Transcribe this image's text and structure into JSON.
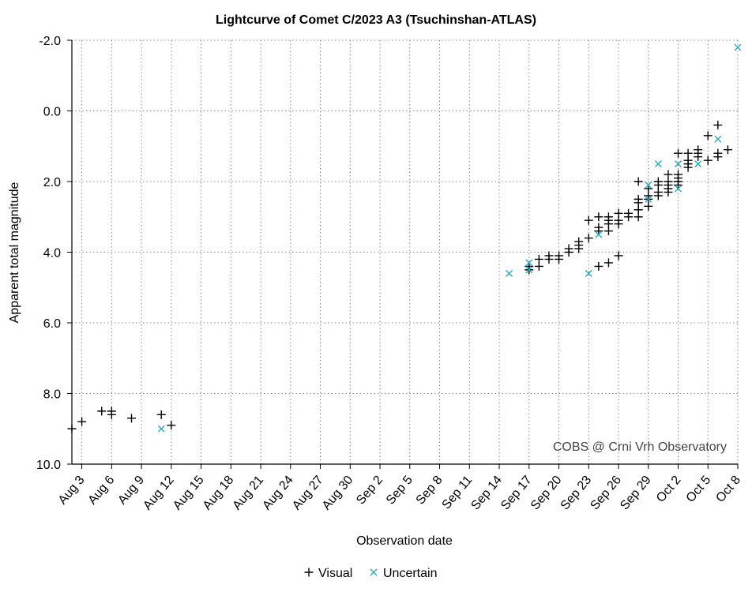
{
  "chart_data": {
    "type": "scatter",
    "title": "Lightcurve of Comet C/2023 A3 (Tsuchinshan-ATLAS)",
    "xlabel": "Observation date",
    "ylabel": "Apparent total magnitude",
    "x_type": "date",
    "year": 2024,
    "xlim": [
      "2024-08-02",
      "2024-10-08"
    ],
    "ylim": [
      10.0,
      -2.0
    ],
    "y_inverted": true,
    "x_ticks": [
      "Aug 3",
      "Aug 6",
      "Aug 9",
      "Aug 12",
      "Aug 15",
      "Aug 18",
      "Aug 21",
      "Aug 24",
      "Aug 27",
      "Aug 30",
      "Sep 2",
      "Sep 5",
      "Sep 8",
      "Sep 11",
      "Sep 14",
      "Sep 17",
      "Sep 20",
      "Sep 23",
      "Sep 26",
      "Sep 29",
      "Oct 2",
      "Oct 5",
      "Oct 8"
    ],
    "y_ticks": [
      "-2.0",
      "0.0",
      "2.0",
      "4.0",
      "6.0",
      "8.0",
      "10.0"
    ],
    "grid": true,
    "legend": "bottom-center",
    "annotation": "COBS @ Crni Vrh Observatory",
    "series": [
      {
        "name": "Visual",
        "marker": "+",
        "color": "#000000",
        "points": [
          [
            "2024-08-02",
            9.0
          ],
          [
            "2024-08-03",
            8.8
          ],
          [
            "2024-08-05",
            8.5
          ],
          [
            "2024-08-06",
            8.6
          ],
          [
            "2024-08-06",
            8.5
          ],
          [
            "2024-08-08",
            8.7
          ],
          [
            "2024-08-11",
            8.6
          ],
          [
            "2024-08-12",
            8.9
          ],
          [
            "2024-09-17",
            4.5
          ],
          [
            "2024-09-17",
            4.4
          ],
          [
            "2024-09-18",
            4.2
          ],
          [
            "2024-09-18",
            4.4
          ],
          [
            "2024-09-19",
            4.2
          ],
          [
            "2024-09-19",
            4.1
          ],
          [
            "2024-09-20",
            4.2
          ],
          [
            "2024-09-20",
            4.1
          ],
          [
            "2024-09-21",
            4.0
          ],
          [
            "2024-09-21",
            3.9
          ],
          [
            "2024-09-22",
            3.9
          ],
          [
            "2024-09-22",
            3.8
          ],
          [
            "2024-09-22",
            3.7
          ],
          [
            "2024-09-23",
            3.6
          ],
          [
            "2024-09-23",
            3.1
          ],
          [
            "2024-09-24",
            3.3
          ],
          [
            "2024-09-24",
            3.4
          ],
          [
            "2024-09-24",
            3.0
          ],
          [
            "2024-09-24",
            4.4
          ],
          [
            "2024-09-25",
            3.2
          ],
          [
            "2024-09-25",
            3.1
          ],
          [
            "2024-09-25",
            3.0
          ],
          [
            "2024-09-25",
            3.4
          ],
          [
            "2024-09-25",
            4.3
          ],
          [
            "2024-09-26",
            3.1
          ],
          [
            "2024-09-26",
            2.9
          ],
          [
            "2024-09-26",
            3.2
          ],
          [
            "2024-09-26",
            4.1
          ],
          [
            "2024-09-27",
            3.0
          ],
          [
            "2024-09-27",
            2.9
          ],
          [
            "2024-09-28",
            2.8
          ],
          [
            "2024-09-28",
            2.0
          ],
          [
            "2024-09-28",
            2.5
          ],
          [
            "2024-09-28",
            2.8
          ],
          [
            "2024-09-28",
            3.0
          ],
          [
            "2024-09-28",
            2.6
          ],
          [
            "2024-09-29",
            2.4
          ],
          [
            "2024-09-29",
            2.7
          ],
          [
            "2024-09-29",
            2.5
          ],
          [
            "2024-09-29",
            2.2
          ],
          [
            "2024-09-30",
            2.3
          ],
          [
            "2024-09-30",
            2.1
          ],
          [
            "2024-09-30",
            2.4
          ],
          [
            "2024-09-30",
            2.0
          ],
          [
            "2024-10-01",
            2.2
          ],
          [
            "2024-10-01",
            2.1
          ],
          [
            "2024-10-01",
            2.3
          ],
          [
            "2024-10-01",
            1.8
          ],
          [
            "2024-10-01",
            2.0
          ],
          [
            "2024-10-02",
            2.1
          ],
          [
            "2024-10-02",
            1.9
          ],
          [
            "2024-10-02",
            2.0
          ],
          [
            "2024-10-02",
            1.2
          ],
          [
            "2024-10-02",
            1.8
          ],
          [
            "2024-10-03",
            1.5
          ],
          [
            "2024-10-03",
            1.6
          ],
          [
            "2024-10-03",
            1.2
          ],
          [
            "2024-10-03",
            1.4
          ],
          [
            "2024-10-04",
            1.2
          ],
          [
            "2024-10-04",
            1.1
          ],
          [
            "2024-10-04",
            1.3
          ],
          [
            "2024-10-05",
            0.7
          ],
          [
            "2024-10-05",
            1.4
          ],
          [
            "2024-10-06",
            1.3
          ],
          [
            "2024-10-06",
            1.2
          ],
          [
            "2024-10-06",
            0.4
          ],
          [
            "2024-10-07",
            1.1
          ]
        ]
      },
      {
        "name": "Uncertain",
        "marker": "x",
        "color": "#29a9bd",
        "points": [
          [
            "2024-08-11",
            9.0
          ],
          [
            "2024-09-15",
            4.6
          ],
          [
            "2024-09-17",
            4.3
          ],
          [
            "2024-09-17",
            4.5
          ],
          [
            "2024-09-23",
            4.6
          ],
          [
            "2024-09-24",
            3.5
          ],
          [
            "2024-09-29",
            2.1
          ],
          [
            "2024-09-29",
            2.5
          ],
          [
            "2024-09-30",
            1.5
          ],
          [
            "2024-10-02",
            2.2
          ],
          [
            "2024-10-02",
            1.5
          ],
          [
            "2024-10-04",
            1.5
          ],
          [
            "2024-10-06",
            0.8
          ],
          [
            "2024-10-08",
            -1.8
          ]
        ]
      }
    ]
  }
}
